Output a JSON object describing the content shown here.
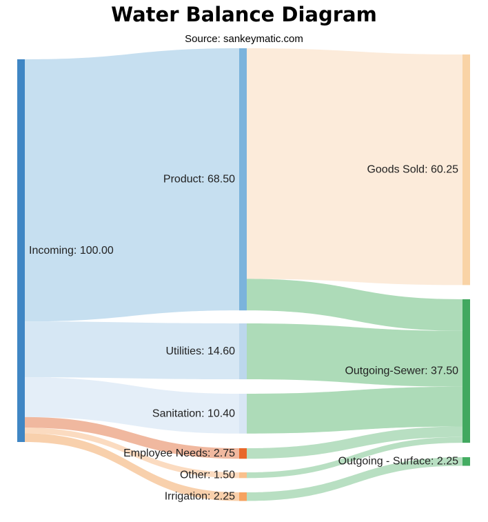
{
  "title": "Water Balance Diagram",
  "subtitle": "Source: sankeymatic.com",
  "chart_data": {
    "type": "sankey",
    "nodes": [
      {
        "id": "incoming",
        "label": "Incoming: 100.00",
        "value": 100.0,
        "color": "#3f86c4"
      },
      {
        "id": "product",
        "label": "Product: 68.50",
        "value": 68.5,
        "color": "#7bb3dc"
      },
      {
        "id": "utilities",
        "label": "Utilities: 14.60",
        "value": 14.6,
        "color": "#bcd7ec"
      },
      {
        "id": "sanitation",
        "label": "Sanitation: 10.40",
        "value": 10.4,
        "color": "#d8e6f4"
      },
      {
        "id": "employee",
        "label": "Employee Needs: 2.75",
        "value": 2.75,
        "color": "#e8682a"
      },
      {
        "id": "other",
        "label": "Other: 1.50",
        "value": 1.5,
        "color": "#f9c08c"
      },
      {
        "id": "irrigation",
        "label": "Irrigation: 2.25",
        "value": 2.25,
        "color": "#f6a25f"
      },
      {
        "id": "goods",
        "label": "Goods Sold: 60.25",
        "value": 60.25,
        "color": "#f9d3a6"
      },
      {
        "id": "sewer",
        "label": "Outgoing-Sewer: 37.50",
        "value": 37.5,
        "color": "#41a85f"
      },
      {
        "id": "surface",
        "label": "Outgoing - Surface: 2.25",
        "value": 2.25,
        "color": "#44ad62"
      }
    ],
    "links": [
      {
        "source": "incoming",
        "target": "product",
        "value": 68.5,
        "color": "#c3ddef"
      },
      {
        "source": "incoming",
        "target": "utilities",
        "value": 14.6,
        "color": "#d4e6f3"
      },
      {
        "source": "incoming",
        "target": "sanitation",
        "value": 10.4,
        "color": "#e3edf8"
      },
      {
        "source": "incoming",
        "target": "employee",
        "value": 2.75,
        "color": "#efb49a"
      },
      {
        "source": "incoming",
        "target": "other",
        "value": 1.5,
        "color": "#fbd9bd"
      },
      {
        "source": "incoming",
        "target": "irrigation",
        "value": 2.25,
        "color": "#f8cda8"
      },
      {
        "source": "product",
        "target": "goods",
        "value": 60.25,
        "color": "#fcead8"
      },
      {
        "source": "product",
        "target": "sewer",
        "value": 8.25,
        "color": "#a9d9b4"
      },
      {
        "source": "utilities",
        "target": "sewer",
        "value": 14.6,
        "color": "#a9d9b4"
      },
      {
        "source": "sanitation",
        "target": "sewer",
        "value": 10.4,
        "color": "#a9d9b4"
      },
      {
        "source": "employee",
        "target": "sewer",
        "value": 2.75,
        "color": "#b4ddbf"
      },
      {
        "source": "other",
        "target": "sewer",
        "value": 1.5,
        "color": "#b4ddbf"
      },
      {
        "source": "irrigation",
        "target": "surface",
        "value": 2.25,
        "color": "#b4ddbf"
      }
    ]
  }
}
